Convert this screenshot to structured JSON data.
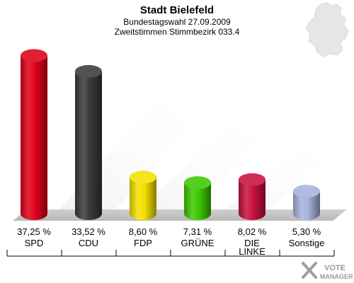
{
  "chart_data": {
    "type": "bar",
    "title": "Stadt Bielefeld",
    "subtitle": "Bundestagswahl 27.09.2009",
    "subtitle2": "Zweitstimmen Stimmbezirk 033.4",
    "categories": [
      "SPD",
      "CDU",
      "FDP",
      "GRÜNE",
      "DIE LINKE",
      "Sonstige"
    ],
    "values": [
      37.25,
      33.52,
      8.6,
      7.31,
      8.02,
      5.3
    ],
    "value_labels": [
      "37,25 %",
      "33,52 %",
      "8,60 %",
      "7,31 %",
      "8,02 %",
      "5,30 %"
    ],
    "colors": [
      "#e0001a",
      "#3a3a3a",
      "#f5e000",
      "#3ec800",
      "#c8103e",
      "#a6b4dc"
    ],
    "ylim": [
      0,
      40
    ]
  },
  "logo": {
    "line1": "VOTE",
    "line2": "MANAGER"
  }
}
